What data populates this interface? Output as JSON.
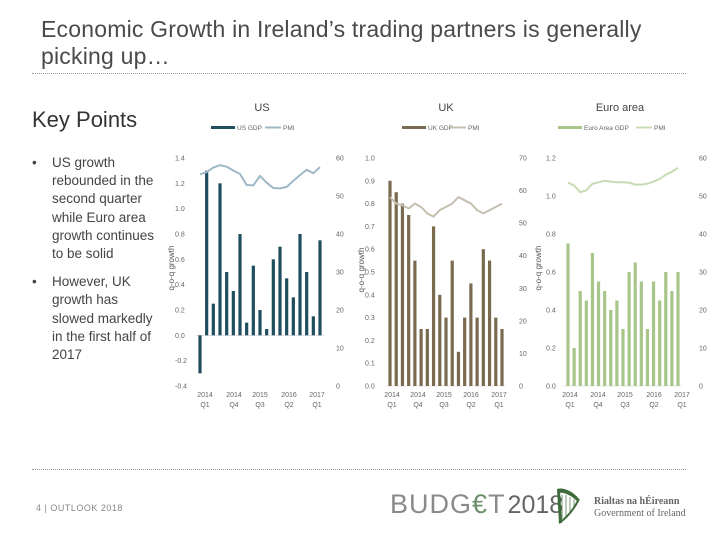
{
  "title": "Economic Growth in Ireland’s trading partners is generally picking up…",
  "key_points": {
    "heading": "Key Points",
    "bullet_symbol": "•",
    "items": [
      "US growth rebounded in the second quarter while Euro area growth continues to be solid",
      "However, UK growth has slowed markedly in the first half of 2017"
    ]
  },
  "footer": {
    "page_label": "4 | OUTLOOK 2018",
    "budget_word_a": "BUDG",
    "budget_euro": "€",
    "budget_word_b": "T",
    "budget_year": "2018",
    "gov_line1": "Rialtas na hÉireann",
    "gov_line2": "Government of Ireland"
  },
  "chart_data": [
    {
      "type": "bar",
      "title": "US",
      "legend": [
        "US GDP",
        "PMI"
      ],
      "ylabel": "q-o-q growth",
      "left_ticks": [
        "1.4",
        "1.2",
        "1.0",
        "0.8",
        "0.6",
        "0.4",
        "0.2",
        "0.0",
        "-0.2",
        "-0.4"
      ],
      "right_ticks": [
        "60",
        "50",
        "40",
        "30",
        "20",
        "10",
        "0"
      ],
      "ylim_left": [
        -0.4,
        1.4
      ],
      "ylim_right": [
        0,
        60
      ],
      "x_ticks": [
        [
          "2014",
          "Q1"
        ],
        [
          "2014",
          "Q4"
        ],
        [
          "2015",
          "Q3"
        ],
        [
          "2016",
          "Q2"
        ],
        [
          "2017",
          "Q1"
        ]
      ],
      "series": [
        {
          "name": "US GDP",
          "kind": "bar",
          "color": "#1f4e5f",
          "values": [
            -0.3,
            1.3,
            0.25,
            1.2,
            0.5,
            0.35,
            0.8,
            0.1,
            0.55,
            0.2,
            0.05,
            0.6,
            0.7,
            0.45,
            0.3,
            0.8,
            0.5,
            0.15,
            0.75
          ]
        },
        {
          "name": "PMI",
          "kind": "line",
          "color": "#9fb8c6",
          "values": [
            55.7,
            56.3,
            57.5,
            58.1,
            57.7,
            56.7,
            55.8,
            52.9,
            52.8,
            55.3,
            53.5,
            52.1,
            52.0,
            52.4,
            54.0,
            55.5,
            56.9,
            56.0,
            57.6
          ]
        }
      ]
    },
    {
      "type": "bar",
      "title": "UK",
      "legend": [
        "UK GDP",
        "PMI"
      ],
      "ylabel": "q-o-q growth",
      "left_ticks": [
        "1.0",
        "0.9",
        "0.8",
        "0.7",
        "0.6",
        "0.5",
        "0.4",
        "0.3",
        "0.2",
        "0.1",
        "0.0"
      ],
      "right_ticks": [
        "70",
        "60",
        "50",
        "40",
        "30",
        "20",
        "10",
        "0"
      ],
      "ylim_left": [
        0,
        1.0
      ],
      "ylim_right": [
        0,
        70
      ],
      "x_ticks": [
        [
          "2014",
          "Q1"
        ],
        [
          "2014",
          "Q4"
        ],
        [
          "2015",
          "Q3"
        ],
        [
          "2016",
          "Q2"
        ],
        [
          "2017",
          "Q1"
        ]
      ],
      "series": [
        {
          "name": "UK GDP",
          "kind": "bar",
          "color": "#7a6a50",
          "values": [
            0.9,
            0.85,
            0.8,
            0.75,
            0.55,
            0.25,
            0.25,
            0.7,
            0.4,
            0.3,
            0.55,
            0.15,
            0.3,
            0.45,
            0.3,
            0.6,
            0.55,
            0.3,
            0.25
          ]
        },
        {
          "name": "PMI",
          "kind": "line",
          "color": "#c5bfb0",
          "values": [
            58.0,
            56.0,
            55.5,
            54.5,
            56.0,
            55.0,
            53.0,
            52.0,
            54.0,
            55.0,
            56.0,
            58.0,
            57.0,
            56.0,
            54.0,
            53.0,
            54.0,
            55.0,
            56.0
          ]
        }
      ]
    },
    {
      "type": "bar",
      "title": "Euro area",
      "legend": [
        "Euro Area GDP",
        "PMI"
      ],
      "ylabel": "q-o-q growth",
      "left_ticks": [
        "1.2",
        "1.0",
        "0.8",
        "0.6",
        "0.4",
        "0.2",
        "0.0"
      ],
      "right_ticks": [
        "60",
        "50",
        "40",
        "30",
        "20",
        "10",
        "0"
      ],
      "ylim_left": [
        0,
        1.2
      ],
      "ylim_right": [
        0,
        60
      ],
      "x_ticks": [
        [
          "2014",
          "Q1"
        ],
        [
          "2014",
          "Q4"
        ],
        [
          "2015",
          "Q3"
        ],
        [
          "2016",
          "Q2"
        ],
        [
          "2017",
          "Q1"
        ]
      ],
      "series": [
        {
          "name": "Euro Area GDP",
          "kind": "bar",
          "color": "#a8c58a",
          "values": [
            0.75,
            0.2,
            0.5,
            0.45,
            0.7,
            0.55,
            0.5,
            0.4,
            0.45,
            0.3,
            0.6,
            0.65,
            0.55,
            0.3,
            0.55,
            0.45,
            0.6,
            0.5,
            0.6
          ]
        },
        {
          "name": "PMI",
          "kind": "line",
          "color": "#c8dcb4",
          "values": [
            53.5,
            52.8,
            51.0,
            51.5,
            53.2,
            53.6,
            54.0,
            53.8,
            53.6,
            53.6,
            53.5,
            53.0,
            53.0,
            53.2,
            53.8,
            54.5,
            55.6,
            56.4,
            57.4
          ]
        }
      ]
    }
  ]
}
